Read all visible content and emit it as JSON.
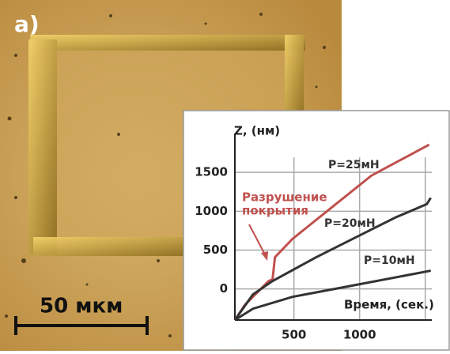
{
  "photo": {
    "label": "a)",
    "scale_label": "50 мкм"
  },
  "chart_data": {
    "type": "line",
    "y_label": "Z, (нм)",
    "x_label": "Время, (сек.)",
    "annotation": [
      "Разрушение",
      "покрытия"
    ],
    "xlim": [
      50,
      1550
    ],
    "ylim": [
      -400,
      2000
    ],
    "xticks": [
      500,
      1000
    ],
    "xgrid": [
      500,
      1000,
      1500
    ],
    "yticks": [
      0,
      500,
      1000,
      1500
    ],
    "grid": true,
    "series": [
      {
        "name": "P=25мН",
        "color": "#c0504d",
        "x": [
          50,
          127,
          247,
          307,
          337,
          355,
          488,
          789,
          1090,
          1530
        ],
        "values": [
          -400,
          -204,
          0,
          102,
          122,
          408,
          643,
          1051,
          1459,
          1857
        ]
      },
      {
        "name": "P=20мН",
        "color": "#333333",
        "x": [
          50,
          187,
          337,
          669,
          970,
          1271,
          1512,
          1542
        ],
        "values": [
          -400,
          -71,
          102,
          408,
          663,
          918,
          1092,
          1173
        ]
      },
      {
        "name": "P=10мН",
        "color": "#333333",
        "x": [
          50,
          187,
          488,
          970,
          1542
        ],
        "values": [
          -400,
          -255,
          -102,
          51,
          235
        ]
      }
    ]
  }
}
